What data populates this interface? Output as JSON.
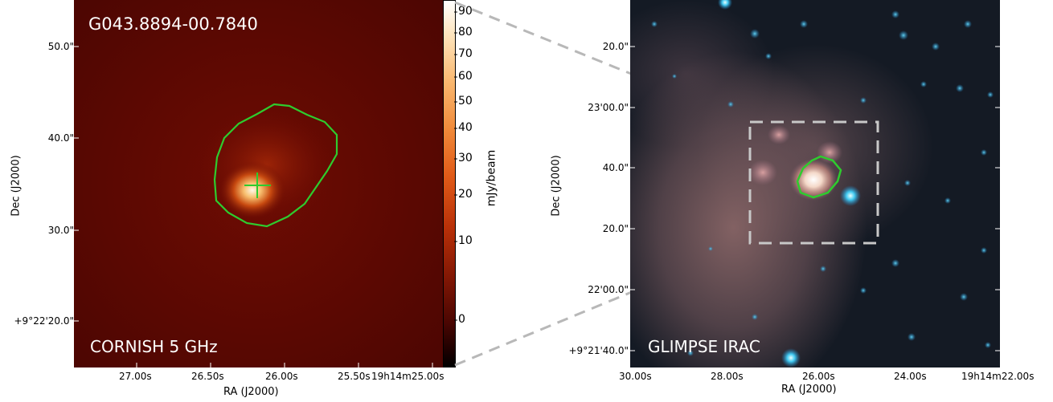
{
  "left": {
    "source_name": "G043.8894-00.7840",
    "survey_label": "CORNISH 5 GHz",
    "y_ticks": [
      "50.0\"",
      "40.0\"",
      "30.0\"",
      "+9°22'20.0\""
    ],
    "x_ticks": [
      "27.00s",
      "26.50s",
      "26.00s",
      "25.50s",
      "19h14m25.00s"
    ],
    "x_axis_title": "RA (J2000)",
    "y_axis_title": "Dec (J2000)"
  },
  "colorbar": {
    "unit_label": "mJy/beam",
    "ticks": [
      "90",
      "80",
      "70",
      "60",
      "50",
      "40",
      "30",
      "20",
      "10",
      "0"
    ]
  },
  "right": {
    "survey_label": "GLIMPSE IRAC",
    "y_ticks": [
      "20.0\"",
      "23'00.0\"",
      "40.0\"",
      "20.0\"",
      "22'00.0\"",
      "+9°21'40.0\""
    ],
    "x_ticks": [
      "30.00s",
      "28.00s",
      "26.00s",
      "24.00s",
      "19h14m22.00s"
    ],
    "x_axis_title": "RA (J2000)",
    "y_axis_title": "Dec (J2000)"
  },
  "colors": {
    "contour": "#2ecc2e",
    "zoom_lines": "#b8b8b8"
  }
}
